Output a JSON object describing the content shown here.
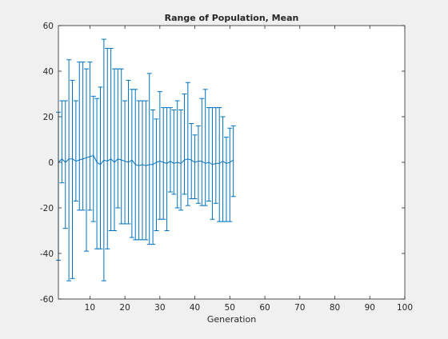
{
  "chart_data": {
    "type": "errorbar",
    "title": "Range of Population, Mean",
    "xlabel": "Generation",
    "ylabel": "",
    "xlim": [
      1,
      100
    ],
    "ylim": [
      -60,
      60
    ],
    "xticks": [
      10,
      20,
      30,
      40,
      50,
      60,
      70,
      80,
      90,
      100
    ],
    "yticks": [
      -60,
      -40,
      -20,
      0,
      20,
      40,
      60
    ],
    "grid": false,
    "colors": {
      "series": "#0072bd",
      "axis": "#262626",
      "plot_bg": "#ffffff",
      "figure_bg": "#f0f0f0"
    },
    "series": [
      {
        "x": [
          1,
          2,
          3,
          4,
          5,
          6,
          7,
          8,
          9,
          10,
          11,
          12,
          13,
          14,
          15,
          16,
          17,
          18,
          19,
          20,
          21,
          22,
          23,
          24,
          25,
          26,
          27,
          28,
          29,
          30,
          31,
          32,
          33,
          34,
          35,
          36,
          37,
          38,
          39,
          40,
          41,
          42,
          43,
          44,
          45,
          46,
          47,
          48,
          49,
          50,
          51
        ],
        "mean": [
          0.0,
          1.5,
          0.0,
          1.5,
          1.5,
          0.5,
          1.0,
          1.5,
          2.0,
          2.5,
          3.0,
          0.0,
          -1.0,
          1.0,
          0.5,
          1.5,
          0.0,
          1.5,
          1.0,
          0.5,
          0.0,
          1.0,
          -1.0,
          -1.5,
          -1.0,
          -1.5,
          -1.0,
          -1.0,
          0.0,
          0.5,
          0.0,
          -0.5,
          0.5,
          -0.5,
          0.0,
          -0.5,
          1.0,
          1.5,
          1.0,
          0.0,
          0.5,
          0.5,
          -0.5,
          0.0,
          -1.0,
          -0.5,
          -0.5,
          0.5,
          -0.5,
          0.0,
          1.0
        ],
        "upper": [
          22,
          27,
          27,
          45,
          36,
          27,
          44,
          44,
          41,
          44,
          29,
          28,
          33,
          54,
          50,
          50,
          41,
          41,
          41,
          27,
          36,
          32,
          32,
          27,
          27,
          27,
          39,
          23,
          19,
          31,
          24,
          24,
          24,
          23,
          27,
          23,
          30,
          35,
          17,
          12,
          16,
          28,
          32,
          24,
          24,
          24,
          24,
          20,
          11,
          15,
          16
        ],
        "lower": [
          -43,
          -9,
          -29,
          -52,
          -51,
          -17,
          -21,
          -21,
          -39,
          -21,
          -26,
          -38,
          -38,
          -52,
          -38,
          -30,
          -30,
          -20,
          -27,
          -27,
          -27,
          -33,
          -34,
          -34,
          -34,
          -34,
          -36,
          -36,
          -30,
          -25,
          -25,
          -30,
          -13,
          -14,
          -20,
          -21,
          -14,
          -19,
          -16,
          -16,
          -18,
          -19,
          -19,
          -17,
          -25,
          -18,
          -26,
          -26,
          -26,
          -26,
          -15
        ]
      }
    ]
  }
}
